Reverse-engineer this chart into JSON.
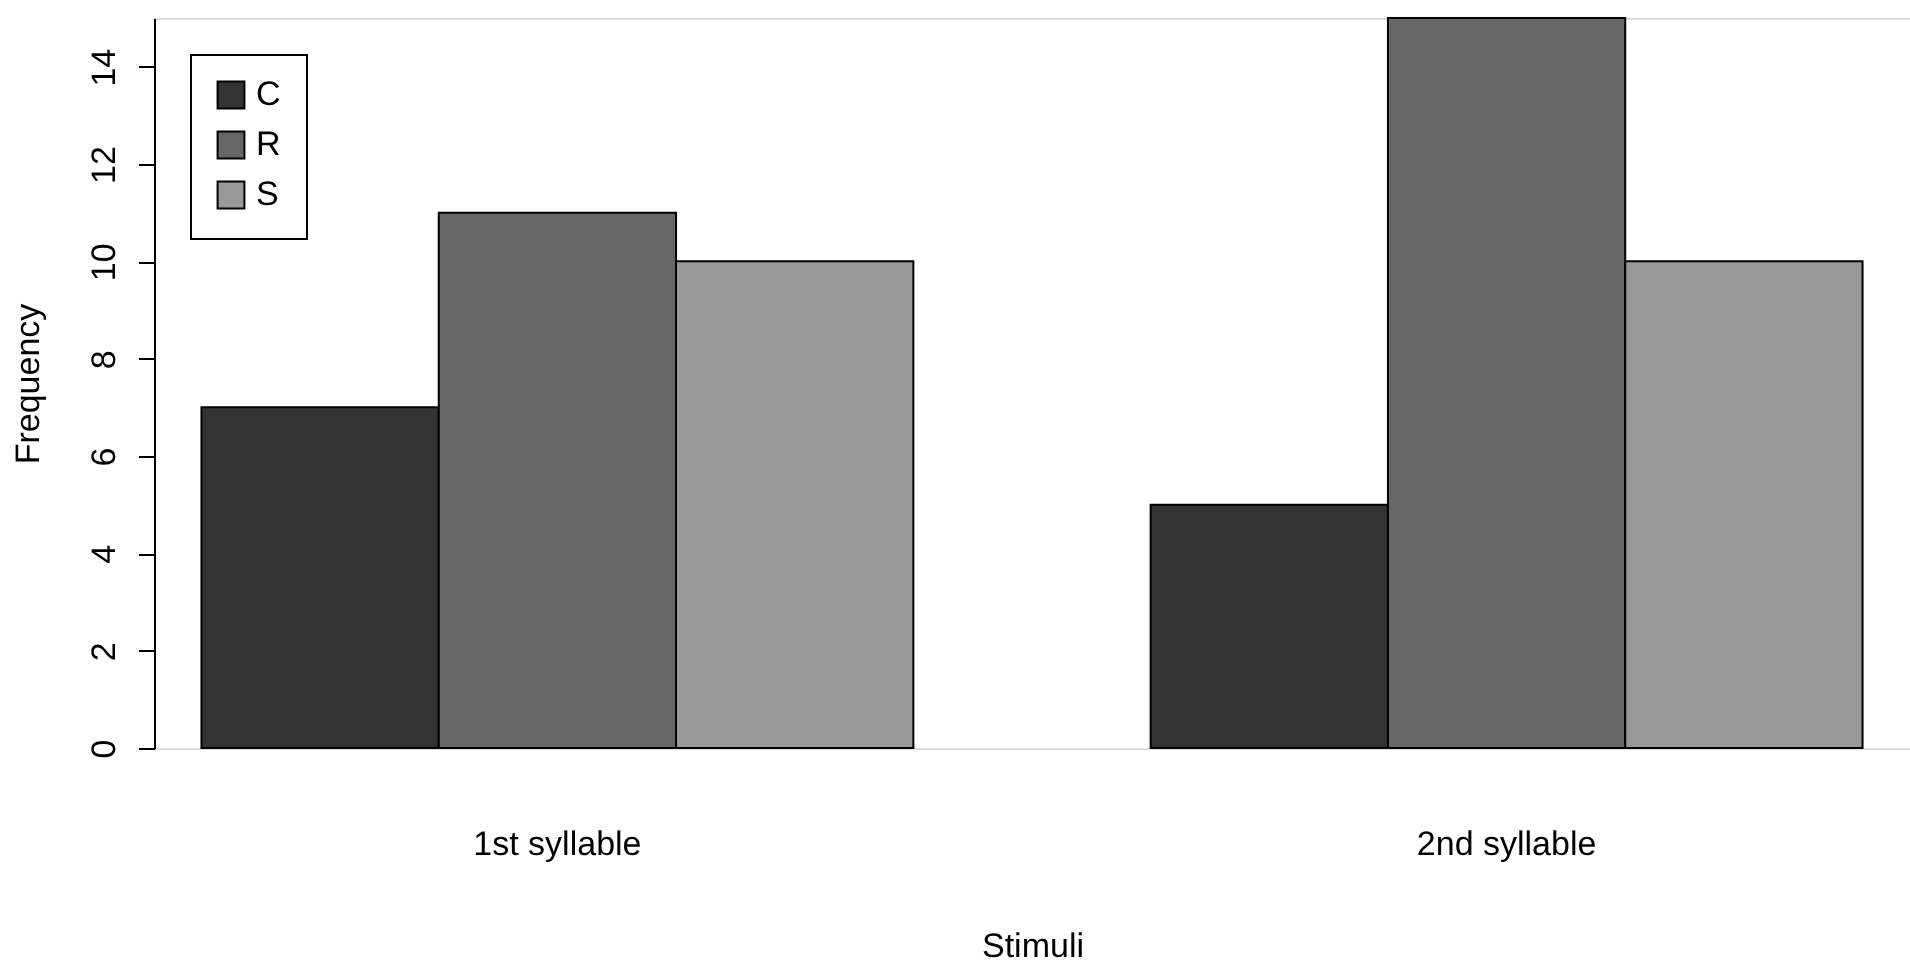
{
  "chart_data": {
    "type": "bar",
    "xlabel": "Stimuli",
    "ylabel": "Frequency",
    "categories": [
      "1st syllable",
      "2nd syllable"
    ],
    "series": [
      {
        "name": "C",
        "color": "#333333",
        "values": [
          7,
          5
        ]
      },
      {
        "name": "R",
        "color": "#666666",
        "values": [
          11,
          15
        ]
      },
      {
        "name": "S",
        "color": "#999999",
        "values": [
          10,
          10
        ]
      }
    ],
    "ylim": [
      0,
      15
    ],
    "yticks": [
      0,
      2,
      4,
      6,
      8,
      10,
      12,
      14
    ],
    "grid": false,
    "legend": "top left"
  }
}
